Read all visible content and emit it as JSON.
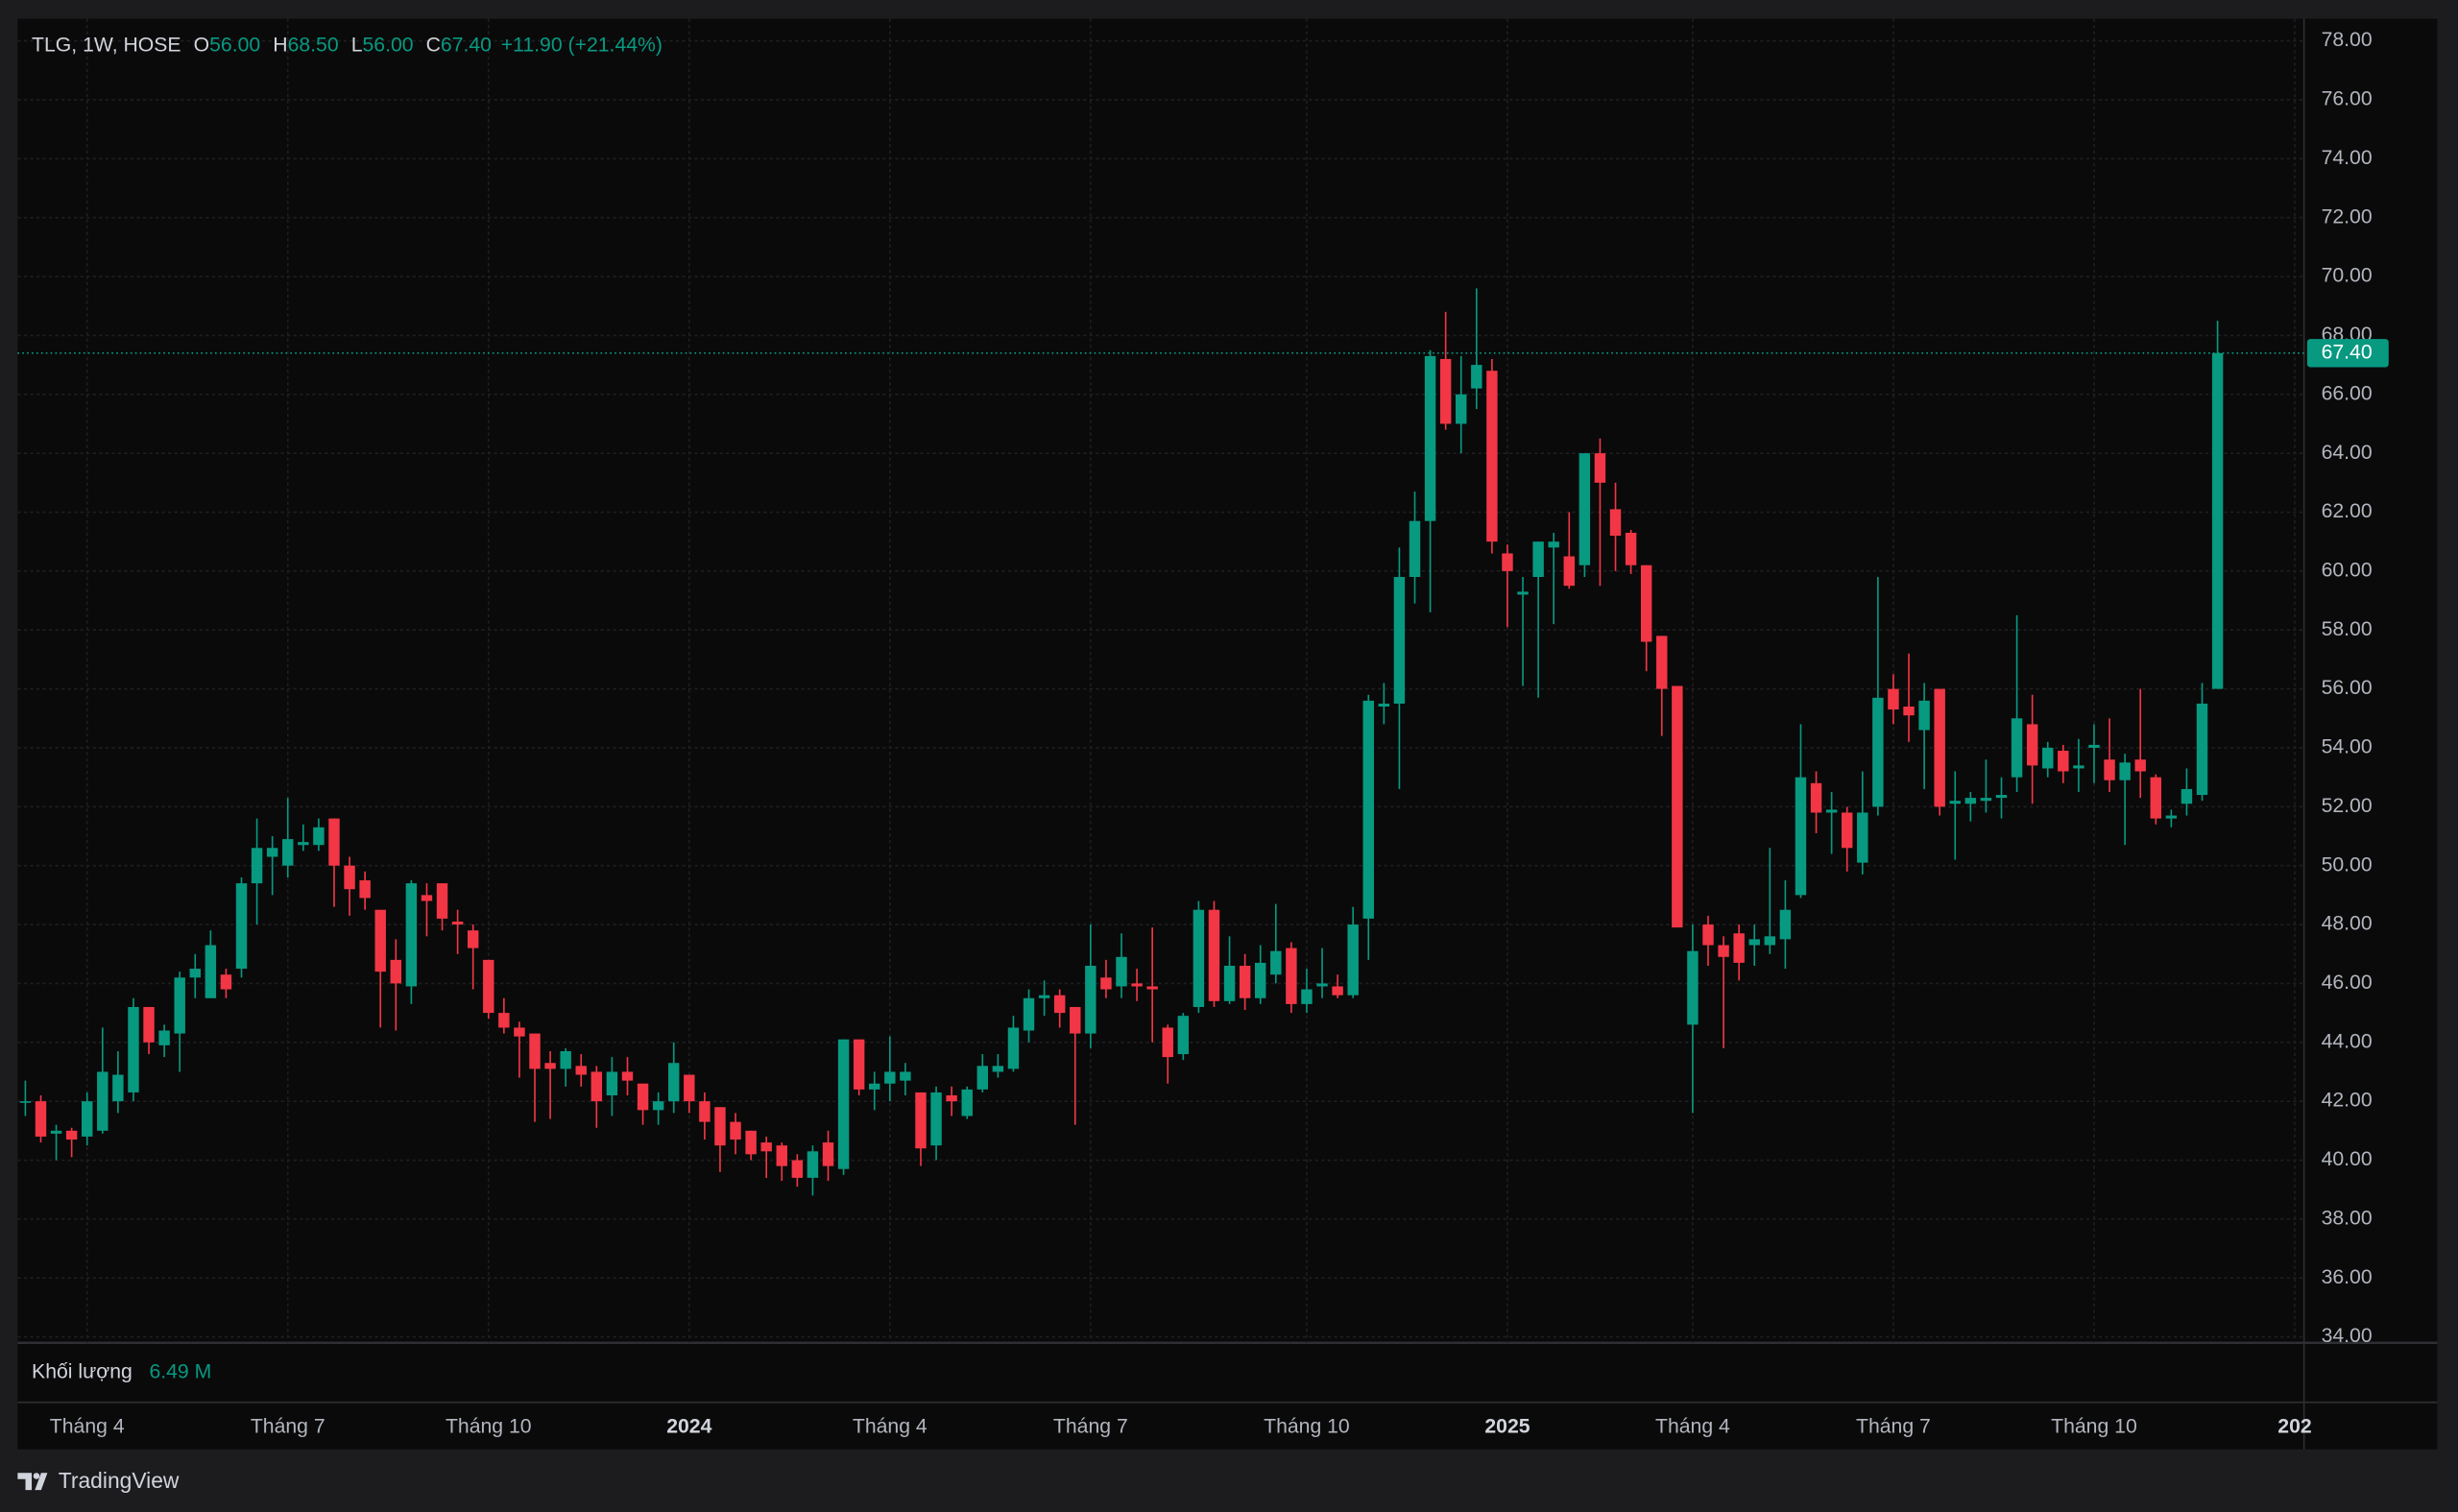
{
  "chart_data": {
    "type": "candlestick",
    "title": "TLG, 1W, HOSE",
    "header_fields": [
      {
        "name": "O",
        "value": 56,
        "label": "56.00"
      },
      {
        "name": "H",
        "value": 68.5,
        "label": "68.50"
      },
      {
        "name": "L",
        "value": 56,
        "label": "56.00"
      },
      {
        "name": "C",
        "value": 67.4,
        "label": "67.40"
      }
    ],
    "change": "+11.90 (+21.44%)",
    "last_price": {
      "value": 67.4,
      "label": "67.40"
    },
    "volume_title": "Khối lượng",
    "volume_value": {
      "value": 6490000,
      "label": "6.49 M"
    },
    "up_color": "#089981",
    "down_color": "#f23645",
    "grid": true,
    "xlim": [
      -0.5,
      147.6
    ],
    "xticks": [
      {
        "value": 4,
        "label": "Tháng 4"
      },
      {
        "value": 17,
        "label": "Tháng 7"
      },
      {
        "value": 30,
        "label": "Tháng 10"
      },
      {
        "value": 43,
        "label": "2024"
      },
      {
        "value": 56,
        "label": "Tháng 4"
      },
      {
        "value": 69,
        "label": "Tháng 7"
      },
      {
        "value": 83,
        "label": "Tháng 10"
      },
      {
        "value": 96,
        "label": "2025"
      },
      {
        "value": 108,
        "label": "Tháng 4"
      },
      {
        "value": 121,
        "label": "Tháng 7"
      },
      {
        "value": 134,
        "label": "Tháng 10"
      },
      {
        "value": 147,
        "label": "202"
      }
    ],
    "ylim": [
      33.8,
      78.75
    ],
    "yticks": [
      {
        "value": 34,
        "label": "34.00"
      },
      {
        "value": 36,
        "label": "36.00"
      },
      {
        "value": 38,
        "label": "38.00"
      },
      {
        "value": 40,
        "label": "40.00"
      },
      {
        "value": 42,
        "label": "42.00"
      },
      {
        "value": 44,
        "label": "44.00"
      },
      {
        "value": 46,
        "label": "46.00"
      },
      {
        "value": 48,
        "label": "48.00"
      },
      {
        "value": 50,
        "label": "50.00"
      },
      {
        "value": 52,
        "label": "52.00"
      },
      {
        "value": 54,
        "label": "54.00"
      },
      {
        "value": 56,
        "label": "56.00"
      },
      {
        "value": 58,
        "label": "58.00"
      },
      {
        "value": 60,
        "label": "60.00"
      },
      {
        "value": 62,
        "label": "62.00"
      },
      {
        "value": 64,
        "label": "64.00"
      },
      {
        "value": 66,
        "label": "66.00"
      },
      {
        "value": 68,
        "label": "68.00"
      },
      {
        "value": 70,
        "label": "70.00"
      },
      {
        "value": 72,
        "label": "72.00"
      },
      {
        "value": 74,
        "label": "74.00"
      },
      {
        "value": 76,
        "label": "76.00"
      },
      {
        "value": 78,
        "label": "78.00"
      }
    ],
    "open": [
      42.0,
      42.0,
      40.9,
      41.0,
      40.8,
      41.0,
      42.0,
      42.3,
      45.2,
      43.9,
      44.3,
      46.2,
      45.5,
      46.3,
      46.5,
      49.4,
      50.3,
      50.0,
      50.7,
      50.7,
      51.6,
      50.0,
      49.5,
      48.5,
      46.8,
      45.9,
      49.0,
      49.4,
      48.1,
      47.8,
      46.8,
      45.0,
      44.5,
      44.3,
      43.3,
      43.1,
      43.2,
      43.0,
      42.2,
      43.0,
      42.6,
      41.7,
      42.0,
      42.9,
      42.0,
      41.8,
      41.3,
      41.0,
      40.6,
      40.5,
      40.0,
      39.4,
      40.6,
      39.7,
      44.1,
      42.4,
      42.6,
      42.7,
      42.3,
      40.5,
      42.2,
      41.5,
      42.4,
      43.0,
      43.1,
      44.4,
      45.5,
      45.6,
      45.2,
      44.3,
      46.2,
      45.9,
      46.0,
      45.9,
      44.5,
      43.6,
      45.2,
      48.5,
      45.4,
      46.6,
      45.5,
      46.3,
      47.2,
      45.3,
      45.9,
      45.9,
      45.6,
      48.2,
      55.4,
      55.5,
      59.8,
      61.7,
      67.2,
      65.0,
      66.2,
      66.8,
      60.6,
      59.2,
      59.8,
      60.8,
      60.5,
      60.2,
      64.0,
      62.1,
      61.3,
      60.2,
      57.8,
      56.1,
      44.6,
      48.0,
      47.3,
      47.7,
      47.3,
      47.3,
      47.5,
      49.0,
      52.8,
      51.8,
      51.8,
      50.1,
      52.0,
      56.0,
      55.4,
      54.6,
      56.0,
      52.1,
      52.1,
      52.2,
      52.3,
      53.0,
      54.8,
      53.3,
      53.9,
      53.3,
      54.0,
      53.6,
      52.9,
      53.6,
      53.0,
      51.6,
      52.1,
      52.4,
      56.0
    ],
    "high": [
      42.7,
      42.2,
      41.2,
      41.1,
      42.3,
      44.5,
      43.7,
      45.5,
      45.2,
      44.6,
      46.4,
      47.0,
      47.8,
      46.5,
      49.6,
      51.6,
      51.0,
      52.3,
      51.4,
      51.6,
      51.6,
      50.3,
      49.8,
      48.5,
      47.5,
      49.5,
      49.4,
      49.4,
      48.5,
      48.0,
      46.8,
      45.5,
      44.7,
      44.3,
      43.7,
      43.8,
      43.6,
      43.2,
      43.5,
      43.5,
      42.6,
      42.3,
      44.0,
      42.9,
      42.3,
      41.8,
      41.6,
      41.0,
      40.8,
      40.6,
      40.2,
      40.5,
      41.0,
      44.1,
      44.1,
      43.0,
      44.2,
      43.3,
      42.3,
      42.5,
      42.5,
      42.5,
      43.6,
      43.6,
      44.9,
      45.8,
      46.1,
      45.8,
      45.2,
      48.0,
      46.8,
      47.7,
      46.5,
      47.9,
      44.6,
      45.0,
      48.8,
      48.8,
      47.6,
      47.0,
      47.3,
      48.7,
      47.4,
      46.5,
      47.2,
      46.3,
      48.6,
      55.8,
      56.2,
      60.8,
      62.7,
      67.5,
      68.8,
      67.3,
      69.6,
      67.2,
      60.9,
      59.8,
      61.0,
      61.3,
      62.0,
      64.0,
      64.5,
      63.0,
      61.4,
      60.2,
      57.8,
      56.1,
      48.0,
      48.3,
      47.6,
      48.0,
      48.0,
      50.6,
      49.5,
      54.8,
      53.2,
      52.5,
      52.0,
      53.2,
      59.8,
      56.5,
      57.2,
      56.2,
      56.0,
      53.2,
      52.5,
      53.6,
      53.0,
      58.5,
      55.8,
      54.2,
      54.1,
      54.3,
      54.8,
      55.0,
      53.8,
      56.0,
      53.1,
      51.9,
      53.3,
      56.2,
      68.5
    ],
    "low": [
      41.5,
      40.6,
      40.0,
      40.1,
      40.5,
      40.9,
      41.6,
      42.0,
      43.6,
      43.5,
      43.0,
      45.5,
      45.5,
      45.5,
      46.2,
      48.0,
      49.0,
      49.6,
      50.5,
      50.5,
      48.6,
      48.3,
      48.5,
      44.5,
      44.4,
      45.3,
      47.6,
      47.8,
      47.0,
      45.8,
      44.8,
      44.3,
      42.8,
      41.3,
      41.4,
      42.5,
      42.5,
      41.1,
      41.5,
      42.2,
      41.2,
      41.2,
      41.6,
      41.6,
      40.7,
      39.6,
      40.2,
      40.0,
      39.4,
      39.3,
      39.1,
      38.8,
      39.3,
      39.5,
      42.2,
      41.7,
      42.0,
      42.2,
      39.8,
      40.0,
      41.5,
      41.4,
      42.3,
      42.8,
      43.0,
      44.0,
      44.9,
      44.5,
      41.2,
      43.8,
      45.5,
      45.5,
      45.4,
      44.0,
      42.6,
      43.4,
      45.0,
      45.2,
      45.3,
      45.1,
      45.3,
      46.0,
      45.0,
      45.0,
      45.5,
      45.5,
      45.5,
      46.8,
      54.8,
      52.6,
      58.9,
      58.6,
      64.8,
      64.0,
      65.5,
      60.6,
      58.1,
      56.1,
      55.7,
      58.2,
      59.4,
      59.8,
      59.5,
      60.0,
      59.9,
      56.6,
      54.4,
      47.9,
      41.6,
      46.6,
      43.8,
      46.1,
      46.6,
      47.0,
      46.5,
      48.9,
      51.1,
      50.4,
      49.8,
      49.7,
      51.7,
      54.8,
      54.2,
      52.6,
      51.7,
      50.2,
      51.5,
      51.8,
      51.6,
      52.5,
      52.1,
      53.0,
      52.8,
      52.5,
      52.8,
      52.5,
      50.7,
      52.3,
      51.4,
      51.3,
      51.7,
      52.2,
      56.0
    ],
    "close": [
      42.0,
      40.8,
      41.0,
      40.7,
      42.0,
      43.0,
      42.9,
      45.2,
      44.0,
      44.4,
      46.2,
      46.5,
      47.3,
      45.8,
      49.4,
      50.6,
      50.6,
      50.9,
      50.8,
      51.3,
      50.0,
      49.2,
      48.9,
      46.4,
      46.0,
      49.4,
      48.8,
      48.2,
      48.0,
      47.2,
      45.0,
      44.5,
      44.2,
      43.1,
      43.1,
      43.7,
      42.9,
      42.0,
      43.0,
      42.7,
      41.7,
      42.0,
      43.3,
      42.0,
      41.3,
      40.5,
      40.7,
      40.2,
      40.3,
      39.8,
      39.4,
      40.3,
      39.8,
      44.1,
      42.4,
      42.6,
      43.0,
      43.0,
      40.4,
      42.3,
      42.0,
      42.4,
      43.2,
      43.2,
      44.5,
      45.5,
      45.6,
      45.0,
      44.3,
      46.6,
      45.8,
      46.9,
      45.9,
      45.8,
      43.5,
      44.9,
      48.5,
      45.4,
      46.6,
      45.5,
      46.7,
      47.1,
      45.3,
      45.8,
      46.0,
      45.6,
      48.0,
      55.6,
      55.5,
      59.8,
      61.7,
      67.3,
      65.0,
      66.0,
      67.0,
      61.0,
      60.0,
      59.3,
      61.0,
      61.0,
      59.5,
      64.0,
      63.0,
      61.2,
      60.2,
      57.6,
      56.0,
      47.9,
      47.1,
      47.3,
      46.9,
      46.7,
      47.5,
      47.6,
      48.5,
      53.0,
      51.8,
      51.9,
      50.6,
      51.8,
      55.7,
      55.3,
      55.1,
      55.6,
      52.0,
      52.2,
      52.3,
      52.3,
      52.4,
      55.0,
      53.4,
      54.0,
      53.2,
      53.4,
      54.1,
      52.9,
      53.5,
      53.2,
      51.6,
      51.7,
      52.6,
      55.5,
      67.4
    ]
  },
  "brand": "TradingView"
}
